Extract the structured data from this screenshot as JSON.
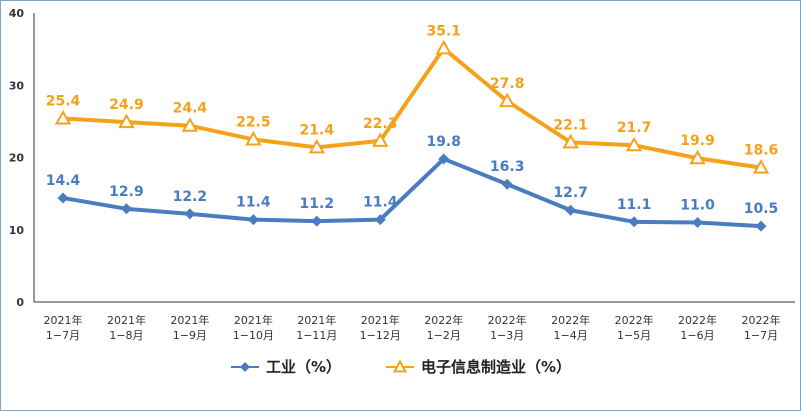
{
  "chart_data": {
    "type": "line",
    "title": "",
    "xlabel": "",
    "ylabel": "",
    "ylim": [
      0,
      40
    ],
    "yticks": [
      "0",
      "10",
      "20",
      "30",
      "40"
    ],
    "categories": [
      [
        "2021年",
        "1−7月"
      ],
      [
        "2021年",
        "1−8月"
      ],
      [
        "2021年",
        "1−9月"
      ],
      [
        "2021年",
        "1−10月"
      ],
      [
        "2021年",
        "1−11月"
      ],
      [
        "2021年",
        "1−12月"
      ],
      [
        "2022年",
        "1−2月"
      ],
      [
        "2022年",
        "1−3月"
      ],
      [
        "2022年",
        "1−4月"
      ],
      [
        "2022年",
        "1−5月"
      ],
      [
        "2022年",
        "1−6月"
      ],
      [
        "2022年",
        "1−7月"
      ]
    ],
    "series": [
      {
        "name": "工业（%）",
        "color": "#4a7cc0",
        "marker": "diamond",
        "values": [
          14.4,
          12.9,
          12.2,
          11.4,
          11.2,
          11.4,
          19.8,
          16.3,
          12.7,
          11.1,
          11.0,
          10.5
        ],
        "labels": [
          "14.4",
          "12.9",
          "12.2",
          "11.4",
          "11.2",
          "11.4",
          "19.8",
          "16.3",
          "12.7",
          "11.1",
          "11.0",
          "10.5"
        ]
      },
      {
        "name": "电子信息制造业（%）",
        "color": "#f5a21b",
        "marker": "triangle",
        "values": [
          25.4,
          24.9,
          24.4,
          22.5,
          21.4,
          22.3,
          35.1,
          27.8,
          22.1,
          21.7,
          19.9,
          18.6
        ],
        "labels": [
          "25.4",
          "24.9",
          "24.4",
          "22.5",
          "21.4",
          "22.3",
          "35.1",
          "27.8",
          "22.1",
          "21.7",
          "19.9",
          "18.6"
        ]
      }
    ],
    "grid": false,
    "legend_position": "bottom"
  }
}
